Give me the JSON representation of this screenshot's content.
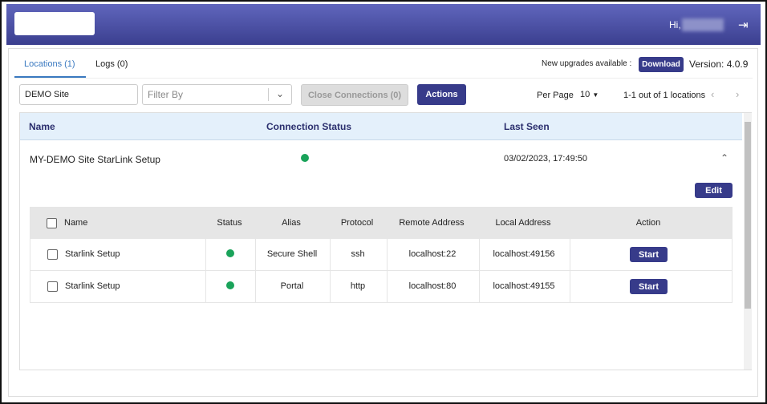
{
  "header": {
    "greeting": "Hi,",
    "logout_icon": "logout-icon"
  },
  "tabs": [
    {
      "label": "Locations (1)",
      "active": true
    },
    {
      "label": "Logs (0)"
    }
  ],
  "upgrade": {
    "text": "New upgrades available :",
    "download_label": "Download",
    "version": "Version: 4.0.9"
  },
  "toolbar": {
    "search_value": "DEMO Site",
    "filter_placeholder": "Filter By",
    "close_connections_label": "Close Connections (0)",
    "actions_label": "Actions",
    "per_page_label": "Per Page",
    "per_page_value": "10",
    "range_text": "1-1 out of 1 locations"
  },
  "table": {
    "columns": [
      "Name",
      "Connection Status",
      "Last Seen"
    ],
    "row": {
      "name": "MY-DEMO Site StarLink Setup",
      "status": "connected",
      "last_seen": "03/02/2023, 17:49:50"
    },
    "edit_label": "Edit",
    "sub_columns": [
      "Name",
      "Status",
      "Alias",
      "Protocol",
      "Remote Address",
      "Local Address",
      "Action"
    ],
    "sub_rows": [
      {
        "name": "Starlink Setup",
        "status": "connected",
        "alias": "Secure Shell",
        "protocol": "ssh",
        "remote": "localhost:22",
        "local": "localhost:49156",
        "action": "Start"
      },
      {
        "name": "Starlink Setup",
        "status": "connected",
        "alias": "Portal",
        "protocol": "http",
        "remote": "localhost:80",
        "local": "localhost:49155",
        "action": "Start"
      }
    ]
  },
  "colors": {
    "primary": "#373b8a",
    "status_green": "#1aa35a",
    "header_row": "#e4f0fb"
  }
}
